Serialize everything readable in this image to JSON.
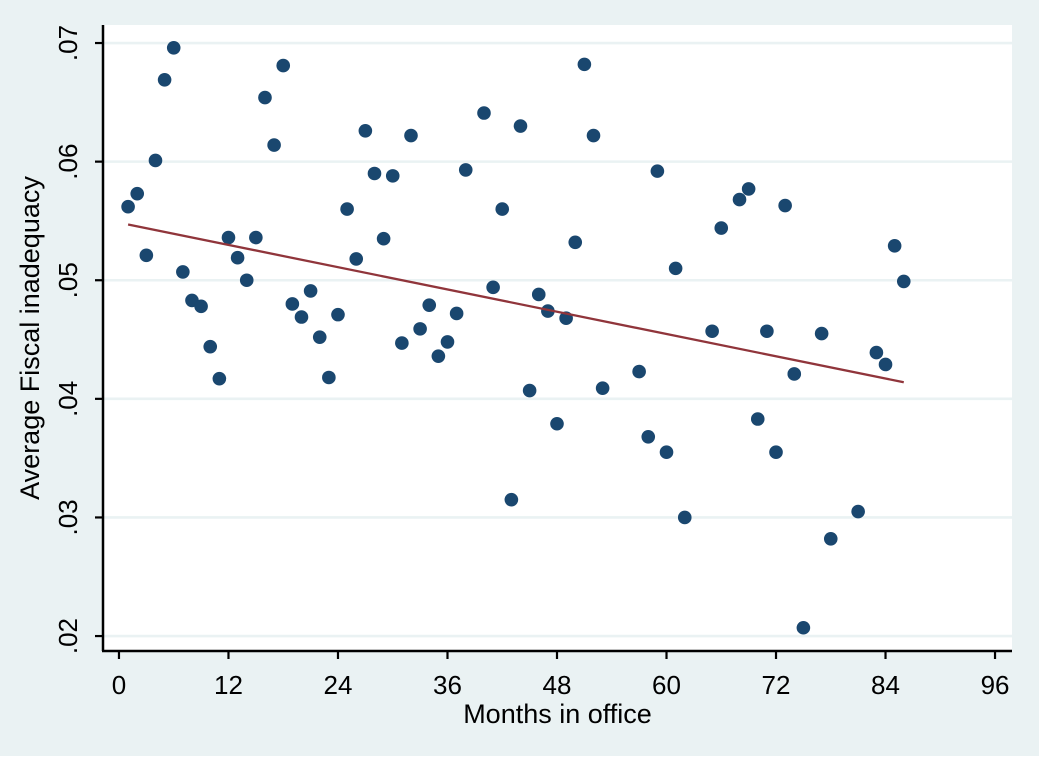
{
  "chart_data": {
    "type": "scatter",
    "title": "",
    "xlabel": "Months in office",
    "ylabel": "Average Fiscal inadequacy",
    "x_ticks": [
      "0",
      "12",
      "24",
      "36",
      "48",
      "60",
      "72",
      "84",
      "96"
    ],
    "x_tick_values": [
      0,
      12,
      24,
      36,
      48,
      60,
      72,
      84,
      96
    ],
    "y_ticks": [
      ".02",
      ".03",
      ".04",
      ".05",
      ".06",
      ".07"
    ],
    "y_tick_values": [
      0.02,
      0.03,
      0.04,
      0.05,
      0.06,
      0.07
    ],
    "xlim": [
      -1.75,
      97.86
    ],
    "ylim": [
      0.01874,
      0.07152
    ],
    "grid": "horizontal-only",
    "legend": "none",
    "series": [
      {
        "name": "scatter-points",
        "marker": "circle",
        "points": [
          [
            1,
            0.0562
          ],
          [
            2,
            0.0573
          ],
          [
            3,
            0.0521
          ],
          [
            4,
            0.0601
          ],
          [
            5,
            0.0669
          ],
          [
            6,
            0.0696
          ],
          [
            7,
            0.0507
          ],
          [
            8,
            0.0483
          ],
          [
            9,
            0.0478
          ],
          [
            10,
            0.0444
          ],
          [
            11,
            0.0417
          ],
          [
            12,
            0.0536
          ],
          [
            13,
            0.0519
          ],
          [
            14,
            0.05
          ],
          [
            15,
            0.0536
          ],
          [
            16,
            0.0654
          ],
          [
            17,
            0.0614
          ],
          [
            18,
            0.0681
          ],
          [
            19,
            0.048
          ],
          [
            20,
            0.0469
          ],
          [
            21,
            0.0491
          ],
          [
            22,
            0.0452
          ],
          [
            23,
            0.0418
          ],
          [
            24,
            0.0471
          ],
          [
            25,
            0.056
          ],
          [
            26,
            0.0518
          ],
          [
            27,
            0.0626
          ],
          [
            28,
            0.059
          ],
          [
            29,
            0.0535
          ],
          [
            30,
            0.0588
          ],
          [
            31,
            0.0447
          ],
          [
            32,
            0.0622
          ],
          [
            33,
            0.0459
          ],
          [
            34,
            0.0479
          ],
          [
            35,
            0.0436
          ],
          [
            36,
            0.0448
          ],
          [
            37,
            0.0472
          ],
          [
            38,
            0.0593
          ],
          [
            40,
            0.0641
          ],
          [
            41,
            0.0494
          ],
          [
            42,
            0.056
          ],
          [
            43,
            0.0315
          ],
          [
            44,
            0.063
          ],
          [
            45,
            0.0407
          ],
          [
            46,
            0.0488
          ],
          [
            47,
            0.0474
          ],
          [
            48,
            0.0379
          ],
          [
            49,
            0.0468
          ],
          [
            50,
            0.0532
          ],
          [
            51,
            0.0682
          ],
          [
            52,
            0.0622
          ],
          [
            53,
            0.0409
          ],
          [
            57,
            0.0423
          ],
          [
            58,
            0.0368
          ],
          [
            59,
            0.0592
          ],
          [
            60,
            0.0355
          ],
          [
            61,
            0.051
          ],
          [
            62,
            0.03
          ],
          [
            65,
            0.0457
          ],
          [
            66,
            0.0544
          ],
          [
            68,
            0.0568
          ],
          [
            69,
            0.0577
          ],
          [
            70,
            0.0383
          ],
          [
            71,
            0.0457
          ],
          [
            72,
            0.0355
          ],
          [
            73,
            0.0563
          ],
          [
            74,
            0.0421
          ],
          [
            75,
            0.0207
          ],
          [
            77,
            0.0455
          ],
          [
            78,
            0.0282
          ],
          [
            81,
            0.0305
          ],
          [
            83,
            0.0439
          ],
          [
            84,
            0.0429
          ],
          [
            85,
            0.0529
          ],
          [
            86,
            0.0499
          ]
        ]
      }
    ],
    "fit_line": {
      "name": "linear-fit",
      "x1": 1,
      "y1": 0.0547,
      "x2": 86,
      "y2": 0.0414
    },
    "colors": {
      "point": "#1a476f",
      "fit_line": "#90353b",
      "background": "#eaf2f3",
      "plot_background": "#ffffff",
      "grid": "#eaf2f3",
      "axis": "#000000",
      "text": "#000000"
    }
  }
}
